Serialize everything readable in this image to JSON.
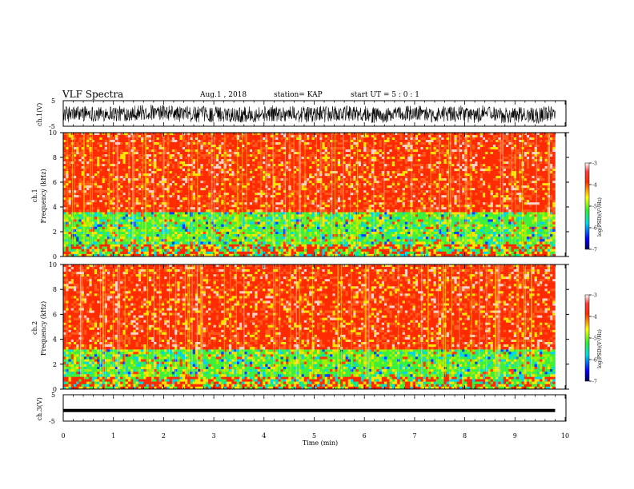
{
  "header": {
    "title": "VLF Spectra",
    "date": "Aug.1 , 2018",
    "station": "station= KAP",
    "start": "start UT = 5 : 0 : 1"
  },
  "chart_data": [
    {
      "type": "line",
      "name": "ch1-waveform",
      "ylabel": "ch.1(V)",
      "ylim": [
        -5,
        5
      ],
      "ytick_labels": [
        "5",
        "-5"
      ],
      "x_range_min": [
        0,
        9.8
      ]
    },
    {
      "type": "heatmap",
      "name": "ch1-spectrogram",
      "ylabel": "ch.1\nFrequency (kHz)",
      "ylim": [
        0,
        10
      ],
      "yticks": [
        0,
        2,
        4,
        6,
        8,
        10
      ],
      "x_range_min": [
        0,
        9.8
      ],
      "description_bands": [
        {
          "from_khz": 0,
          "to_khz": 1,
          "level": "mixed"
        },
        {
          "from_khz": 1,
          "to_khz": 3.6,
          "level": "low"
        },
        {
          "from_khz": 3.6,
          "to_khz": 10,
          "level": "high"
        }
      ],
      "colorbar": {
        "label": "log(PSD)(V²/Hz)",
        "ticks": [
          -3,
          -4,
          -5,
          -6,
          -7
        ],
        "range": [
          -7,
          -3
        ]
      }
    },
    {
      "type": "heatmap",
      "name": "ch2-spectrogram",
      "ylabel": "ch.2\nFrequency (kHz)",
      "ylim": [
        0,
        10
      ],
      "yticks": [
        0,
        2,
        4,
        6,
        8,
        10
      ],
      "x_range_min": [
        0,
        9.8
      ],
      "description_bands": [
        {
          "from_khz": 0,
          "to_khz": 1,
          "level": "mixed"
        },
        {
          "from_khz": 1,
          "to_khz": 3.2,
          "level": "low"
        },
        {
          "from_khz": 3.2,
          "to_khz": 10,
          "level": "high"
        }
      ],
      "colorbar": {
        "label": "log(PSD)(V²/Hz)",
        "ticks": [
          -3,
          -4,
          -5,
          -6,
          -7
        ],
        "range": [
          -7,
          -3
        ]
      }
    },
    {
      "type": "line",
      "name": "ch3-waveform",
      "ylabel": "ch.3(V)",
      "ylim": [
        -5,
        5
      ],
      "ytick_labels": [
        "5",
        "-5"
      ],
      "values_constant": -1,
      "x_range_min": [
        0,
        9.8
      ]
    }
  ],
  "xaxis": {
    "label": "Time (min)",
    "ticks": [
      0,
      1,
      2,
      3,
      4,
      5,
      6,
      7,
      8,
      9,
      10
    ],
    "range": [
      0,
      10
    ]
  },
  "colors": {
    "high": "#ff2a00",
    "mid": "#ffe400",
    "low": "#3cf03c",
    "cyan": "#00d8e8",
    "blue": "#0040ff",
    "navy": "#000060"
  }
}
